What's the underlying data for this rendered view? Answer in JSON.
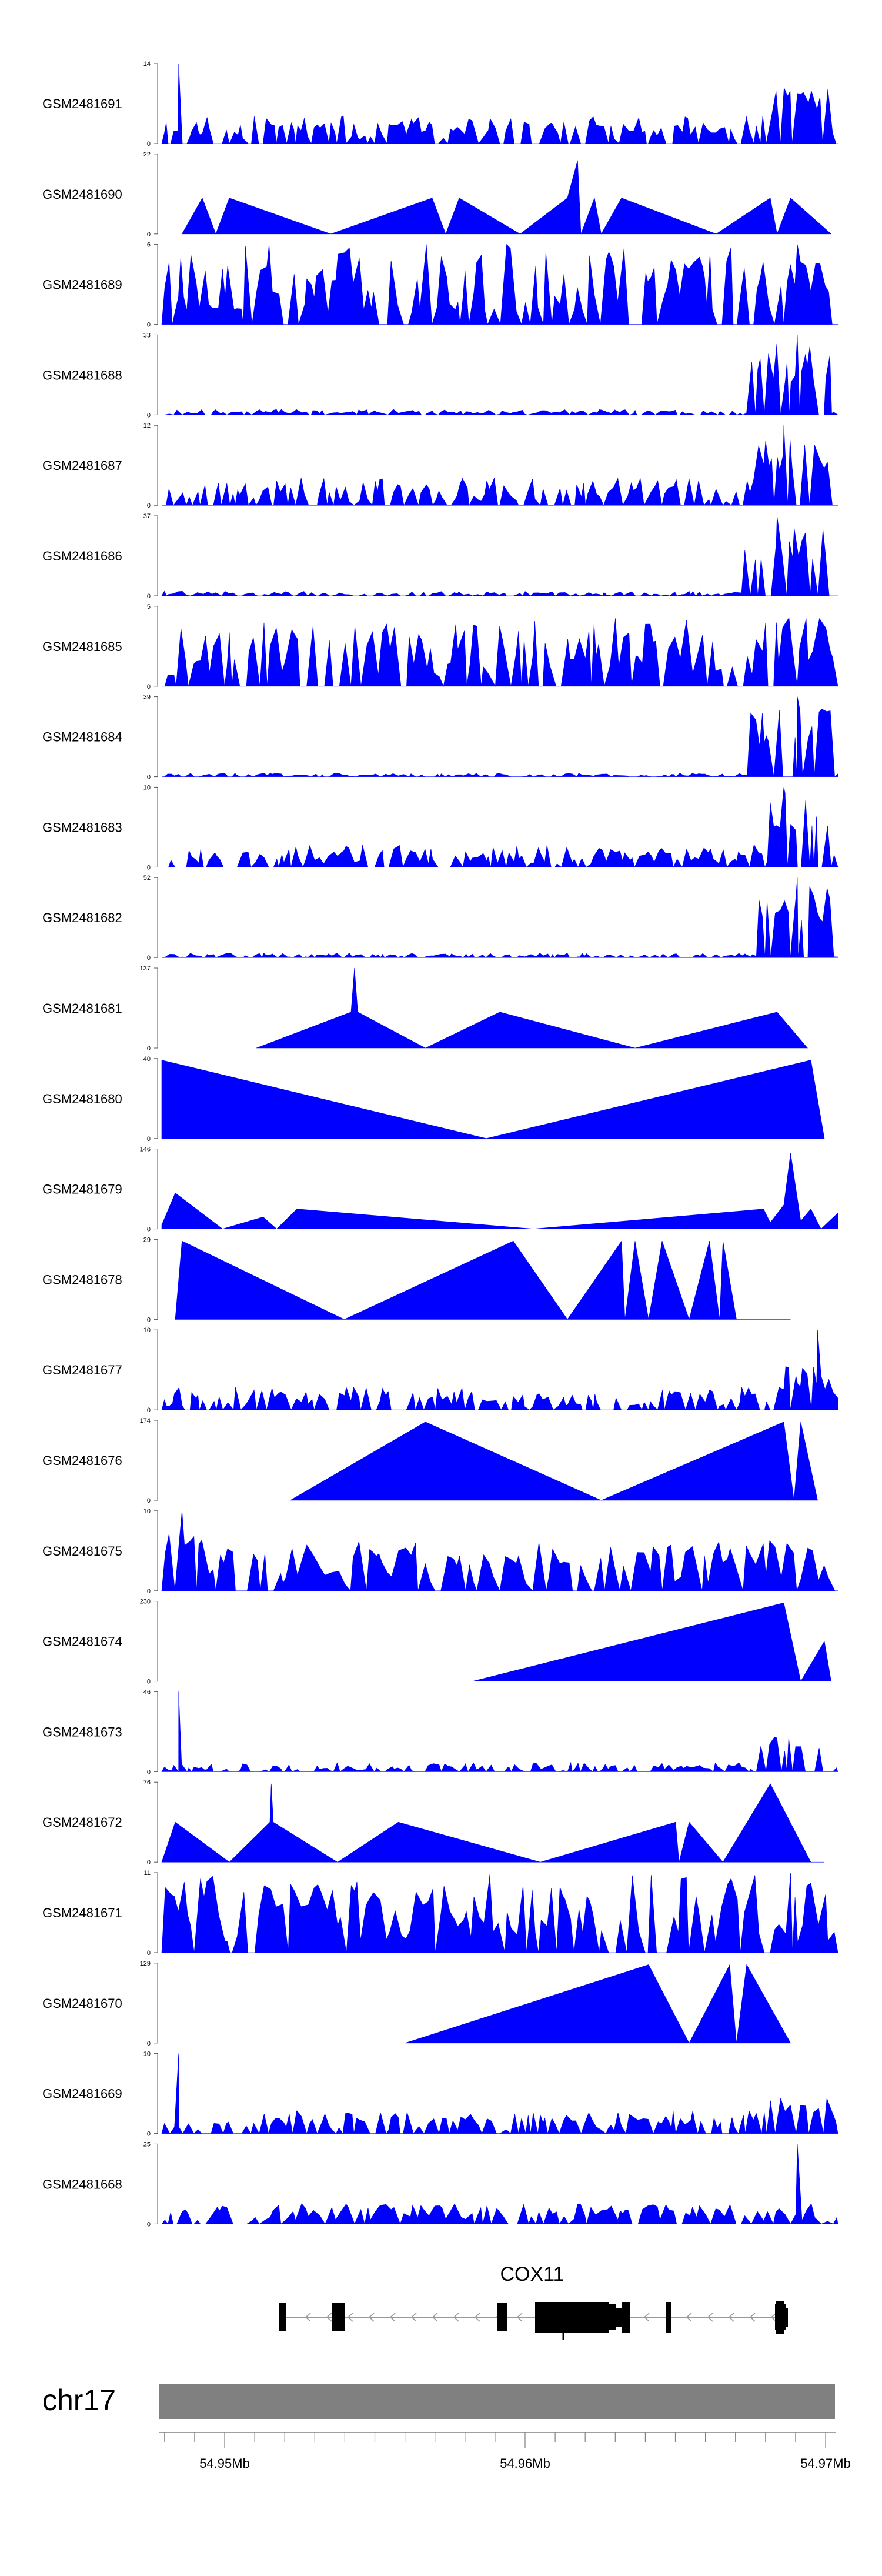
{
  "chart_data": {
    "type": "area",
    "chromosome": "chr17",
    "gene": {
      "name": "COX11",
      "strand": "-"
    },
    "x_axis": {
      "ticks": [
        {
          "pos": 54950000,
          "label": "54.95Mb"
        },
        {
          "pos": 54960000,
          "label": "54.96Mb"
        },
        {
          "pos": 54970000,
          "label": "54.97Mb"
        }
      ]
    },
    "tracks": [
      {
        "name": "GSM2481691",
        "ymax": 14
      },
      {
        "name": "GSM2481690",
        "ymax": 22
      },
      {
        "name": "GSM2481689",
        "ymax": 6
      },
      {
        "name": "GSM2481688",
        "ymax": 33
      },
      {
        "name": "GSM2481687",
        "ymax": 12
      },
      {
        "name": "GSM2481686",
        "ymax": 37
      },
      {
        "name": "GSM2481685",
        "ymax": 5
      },
      {
        "name": "GSM2481684",
        "ymax": 39
      },
      {
        "name": "GSM2481683",
        "ymax": 10
      },
      {
        "name": "GSM2481682",
        "ymax": 52
      },
      {
        "name": "GSM2481681",
        "ymax": 137
      },
      {
        "name": "GSM2481680",
        "ymax": 40
      },
      {
        "name": "GSM2481679",
        "ymax": 146
      },
      {
        "name": "GSM2481678",
        "ymax": 29
      },
      {
        "name": "GSM2481677",
        "ymax": 10
      },
      {
        "name": "GSM2481676",
        "ymax": 174
      },
      {
        "name": "GSM2481675",
        "ymax": 10
      },
      {
        "name": "GSM2481674",
        "ymax": 230
      },
      {
        "name": "GSM2481673",
        "ymax": 46
      },
      {
        "name": "GSM2481672",
        "ymax": 76
      },
      {
        "name": "GSM2481671",
        "ymax": 11
      },
      {
        "name": "GSM2481670",
        "ymax": 129
      },
      {
        "name": "GSM2481669",
        "ymax": 10
      },
      {
        "name": "GSM2481668",
        "ymax": 25
      }
    ]
  }
}
